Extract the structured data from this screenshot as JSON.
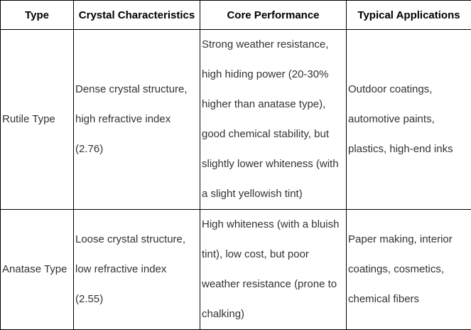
{
  "table": {
    "headers": [
      "Type",
      "Crystal Characteristics",
      "Core Performance",
      "Typical Applications"
    ],
    "rows": [
      {
        "type": "Rutile Type",
        "crystal": "Dense crystal structure,\nhigh refractive index\n(2.76)",
        "performance": "Strong weather resistance,\nhigh hiding power (20-30%\nhigher than anatase type),\ngood chemical stability, but\nslightly lower whiteness (with\na slight yellowish tint)",
        "applications": "Outdoor coatings,\nautomotive paints,\nplastics, high-end inks"
      },
      {
        "type": "Anatase Type",
        "crystal": "Loose crystal structure,\nlow refractive index\n(2.55)",
        "performance": "High whiteness (with a bluish\ntint), low cost, but poor\nweather resistance (prone to\nchalking)",
        "applications": "Paper making, interior\ncoatings, cosmetics,\nchemical fibers"
      }
    ]
  },
  "colors": {
    "border": "#000000",
    "header_text": "#000000",
    "body_text": "#333333",
    "background": "#ffffff"
  }
}
